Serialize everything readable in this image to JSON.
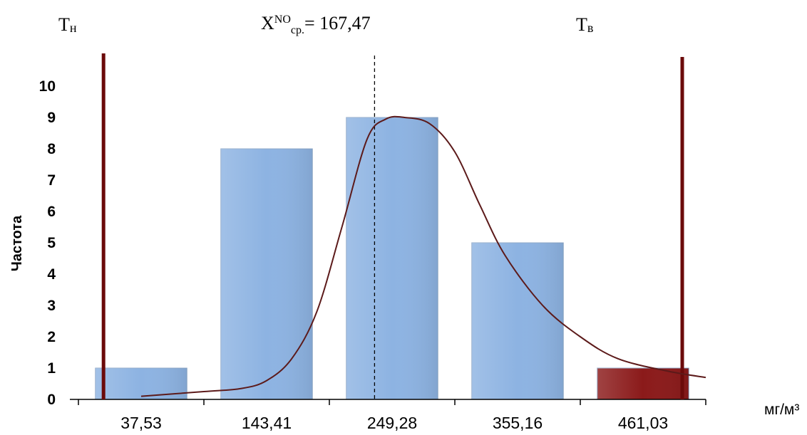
{
  "chart_data": {
    "type": "bar",
    "categories": [
      "37,53",
      "143,41",
      "249,28",
      "355,16",
      "461,03"
    ],
    "values": [
      1,
      8,
      9,
      5,
      1
    ],
    "ylabel": "Частота",
    "xlabel": "мг/м³",
    "ylim": [
      0,
      10
    ],
    "yticks": [
      "0",
      "1",
      "2",
      "3",
      "4",
      "5",
      "6",
      "7",
      "8",
      "9",
      "10"
    ],
    "grid": false,
    "bar_colors": [
      "#8db3e2",
      "#8db3e2",
      "#8db3e2",
      "#8db3e2",
      "#8b1a1a"
    ],
    "curve": {
      "x": [
        0.0,
        0.5,
        0.8,
        1.0,
        1.2,
        1.4,
        1.6,
        1.8,
        1.95,
        2.1,
        2.3,
        2.5,
        2.7,
        2.9,
        3.2,
        3.5,
        3.8,
        4.2,
        4.5
      ],
      "y": [
        0.1,
        0.25,
        0.35,
        0.6,
        1.3,
        2.8,
        5.5,
        8.3,
        8.95,
        9.0,
        8.8,
        7.9,
        6.2,
        4.6,
        3.0,
        2.0,
        1.3,
        0.9,
        0.7
      ],
      "color": "#5c1a1a"
    },
    "mean_line": {
      "position": 1.9,
      "label_main": "X",
      "label_sup": "NO",
      "label_sub": "ср.",
      "label_value": "= 167,47"
    },
    "lower_bound": {
      "position": -0.3,
      "label_main": "Т",
      "label_sub": "н",
      "color": "#6b0a0a"
    },
    "upper_bound": {
      "position": 4.5,
      "label_main": "Т",
      "label_sub": "в",
      "color": "#6b0a0a"
    }
  }
}
